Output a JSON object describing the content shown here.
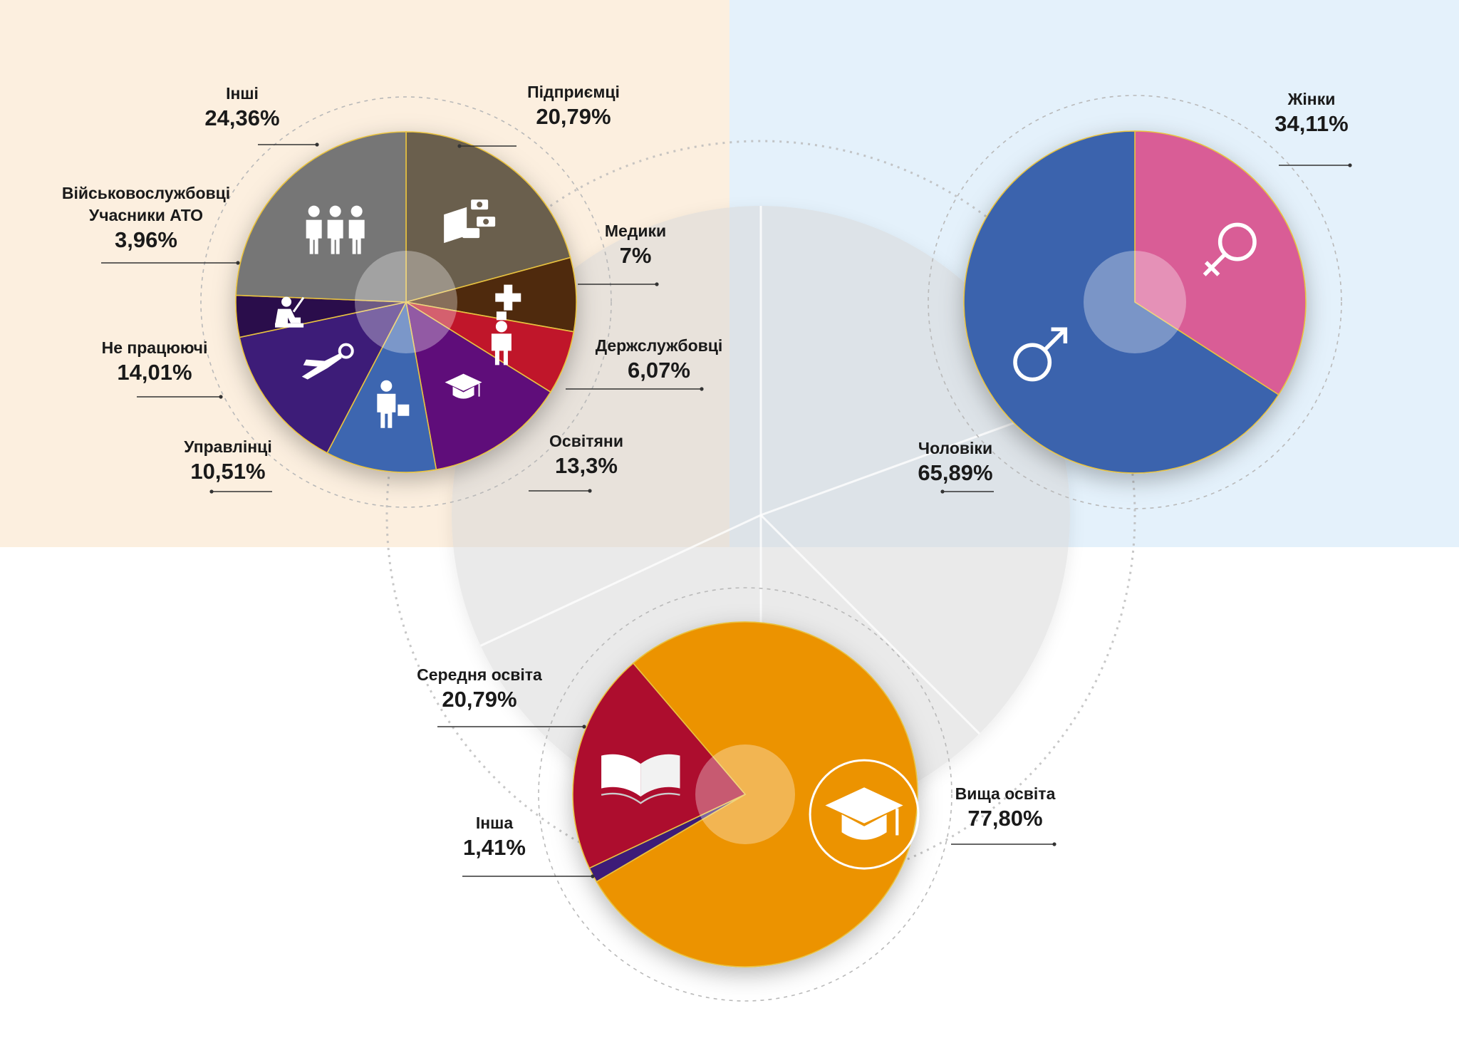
{
  "colors": {
    "panel_left": "#fcefdf",
    "panel_right": "#e4f1fb",
    "slice_border": "#e8c240",
    "dashed_ring": "#b9b9b9",
    "ghost_pie": "#d9d9d9",
    "text": "#1a1a1a"
  },
  "chart_data": [
    {
      "type": "pie",
      "title": "",
      "slices": [
        {
          "label": "Підприємці",
          "value": 20.79,
          "value_label": "20,79%",
          "color": "#6b5f4e",
          "icon": "money-icon"
        },
        {
          "label": "Медики",
          "value": 7.0,
          "value_label": "7%",
          "color": "#4f2a0d",
          "icon": "medical-cross-icon"
        },
        {
          "label": "Держслужбовці",
          "value": 6.07,
          "value_label": "6,07%",
          "color": "#c0122a",
          "icon": "civil-servant-icon"
        },
        {
          "label": "Освітяни",
          "value": 13.3,
          "value_label": "13,3%",
          "color": "#5e0e7a",
          "icon": "graduation-cap-icon"
        },
        {
          "label": "Управлінці",
          "value": 10.51,
          "value_label": "10,51%",
          "color": "#3d66b0",
          "icon": "manager-icon"
        },
        {
          "label": "Не працюючі",
          "value": 14.01,
          "value_label": "14,01%",
          "color": "#3c1a78",
          "icon": "relaxing-person-icon"
        },
        {
          "label": "Військовослужбовці Учасники АТО",
          "label_lines": [
            "Військовослужбовці",
            "Учасники АТО"
          ],
          "value": 3.96,
          "value_label": "3,96%",
          "color": "#2a0c4c",
          "icon": "soldier-icon"
        },
        {
          "label": "Інші",
          "value": 24.36,
          "value_label": "24,36%",
          "color": "#767676",
          "icon": "people-group-icon"
        }
      ]
    },
    {
      "type": "pie",
      "title": "",
      "slices": [
        {
          "label": "Жінки",
          "value": 34.11,
          "value_label": "34,11%",
          "color": "#d95d96",
          "icon": "female-symbol-icon"
        },
        {
          "label": "Чоловіки",
          "value": 65.89,
          "value_label": "65,89%",
          "color": "#3a64ad",
          "icon": "male-symbol-icon"
        }
      ]
    },
    {
      "type": "pie",
      "title": "",
      "slices": [
        {
          "label": "Вища освіта",
          "value": 77.8,
          "value_label": "77,80%",
          "color": "#ec9306",
          "icon": "graduation-cap-icon"
        },
        {
          "label": "Інша",
          "value": 1.41,
          "value_label": "1,41%",
          "color": "#3c1a78",
          "icon": ""
        },
        {
          "label": "Середня освіта",
          "value": 20.79,
          "value_label": "20,79%",
          "color": "#ad0b2d",
          "icon": "open-book-icon"
        }
      ]
    }
  ]
}
